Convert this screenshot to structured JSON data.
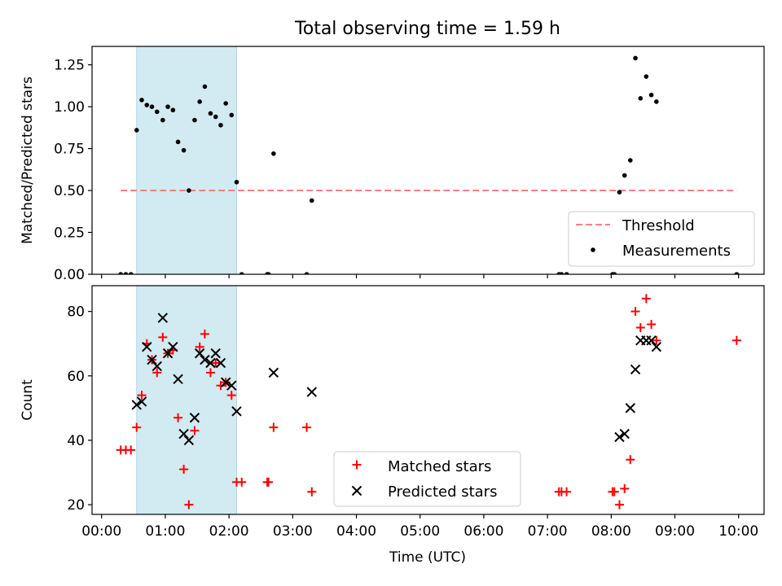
{
  "figure": {
    "title": "Total observing time = 1.59 h",
    "xlabel": "Time (UTC)"
  },
  "chart_data": [
    {
      "type": "scatter",
      "ylabel": "Matched/Predicted stars",
      "xlim": [
        -0.15,
        10.4
      ],
      "ylim": [
        0,
        1.36
      ],
      "yticks": [
        0.0,
        0.25,
        0.5,
        0.75,
        1.0,
        1.25
      ],
      "ytick_labels": [
        "0.00",
        "0.25",
        "0.50",
        "0.75",
        "1.00",
        "1.25"
      ],
      "shaded_span": {
        "x_start": 0.55,
        "x_end": 2.12,
        "color": "#add8e6"
      },
      "grid": false,
      "legend_location": "lower right",
      "series": [
        {
          "name": "Threshold",
          "kind": "line",
          "color": "#ff7f7f",
          "dashed": true,
          "x": [
            0.3,
            9.97
          ],
          "y": [
            0.5,
            0.5
          ]
        },
        {
          "name": "Measurements",
          "kind": "points",
          "color": "#000000",
          "x": [
            0.3,
            0.38,
            0.46,
            0.55,
            0.63,
            0.71,
            0.79,
            0.87,
            0.96,
            1.04,
            1.12,
            1.2,
            1.29,
            1.37,
            1.46,
            1.54,
            1.62,
            1.71,
            1.79,
            1.87,
            1.95,
            2.04,
            2.12,
            2.2,
            2.6,
            2.62,
            2.7,
            3.22,
            3.3,
            7.18,
            7.22,
            7.3,
            8.02,
            8.05,
            8.13,
            8.21,
            8.3,
            8.38,
            8.46,
            8.55,
            8.63,
            8.71,
            9.97
          ],
          "y": [
            0.0,
            0.0,
            0.0,
            0.86,
            1.04,
            1.01,
            1.0,
            0.97,
            0.92,
            1.0,
            0.98,
            0.79,
            0.74,
            0.5,
            0.92,
            1.03,
            1.12,
            0.96,
            0.94,
            0.89,
            1.02,
            0.95,
            0.55,
            0.0,
            0.0,
            0.0,
            0.72,
            0.0,
            0.44,
            0.0,
            0.0,
            0.0,
            0.0,
            0.0,
            0.49,
            0.59,
            0.68,
            1.29,
            1.05,
            1.18,
            1.07,
            1.03,
            0.0
          ]
        }
      ]
    },
    {
      "type": "scatter",
      "ylabel": "Count",
      "xlabel": "Time (UTC)",
      "xlim": [
        -0.15,
        10.4
      ],
      "ylim": [
        17,
        88
      ],
      "yticks": [
        20,
        40,
        60,
        80
      ],
      "ytick_labels": [
        "20",
        "40",
        "60",
        "80"
      ],
      "xticks": [
        0,
        1,
        2,
        3,
        4,
        5,
        6,
        7,
        8,
        9,
        10
      ],
      "xtick_labels": [
        "00:00",
        "01:00",
        "02:00",
        "03:00",
        "04:00",
        "05:00",
        "06:00",
        "07:00",
        "08:00",
        "09:00",
        "10:00"
      ],
      "shaded_span": {
        "x_start": 0.55,
        "x_end": 2.12,
        "color": "#add8e6"
      },
      "grid": false,
      "legend_location": "lower center",
      "series": [
        {
          "name": "Matched stars",
          "marker": "plus",
          "color": "#ff0000",
          "x": [
            0.3,
            0.38,
            0.46,
            0.55,
            0.63,
            0.71,
            0.79,
            0.87,
            0.96,
            1.04,
            1.12,
            1.2,
            1.29,
            1.37,
            1.46,
            1.54,
            1.62,
            1.71,
            1.79,
            1.87,
            1.95,
            2.04,
            2.12,
            2.2,
            2.6,
            2.62,
            2.7,
            3.22,
            3.3,
            7.18,
            7.22,
            7.3,
            8.02,
            8.05,
            8.13,
            8.21,
            8.3,
            8.38,
            8.46,
            8.55,
            8.63,
            8.71,
            9.97
          ],
          "y": [
            37,
            37,
            37,
            44,
            54,
            70,
            65,
            61,
            72,
            67,
            68,
            47,
            31,
            20,
            43,
            69,
            73,
            61,
            64,
            57,
            58,
            54,
            27,
            27,
            27,
            27,
            44,
            44,
            24,
            24,
            24,
            24,
            24,
            24,
            20,
            25,
            34,
            80,
            75,
            84,
            76,
            71,
            71
          ]
        },
        {
          "name": "Predicted stars",
          "marker": "x",
          "color": "#000000",
          "x": [
            0.55,
            0.63,
            0.71,
            0.79,
            0.87,
            0.96,
            1.04,
            1.12,
            1.2,
            1.29,
            1.37,
            1.46,
            1.54,
            1.62,
            1.71,
            1.79,
            1.87,
            1.95,
            2.04,
            2.12,
            2.7,
            3.3,
            8.13,
            8.21,
            8.3,
            8.38,
            8.46,
            8.55,
            8.63,
            8.71
          ],
          "y": [
            51,
            52,
            69,
            65,
            63,
            78,
            67,
            69,
            59,
            42,
            40,
            47,
            67,
            65,
            64,
            67,
            64,
            58,
            57,
            49,
            61,
            55,
            41,
            42,
            50,
            62,
            71,
            71,
            71,
            69
          ]
        }
      ]
    }
  ]
}
